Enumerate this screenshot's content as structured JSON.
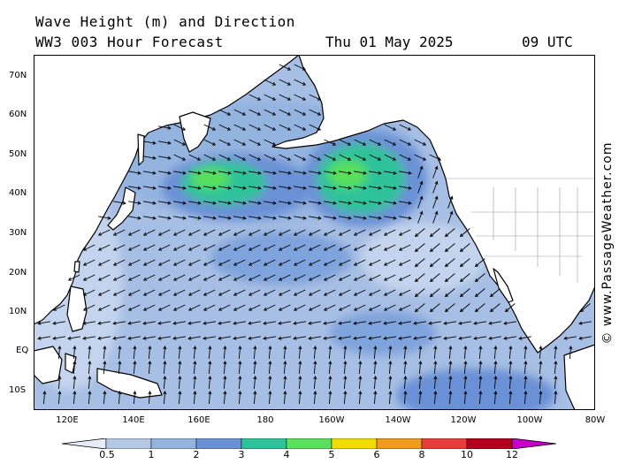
{
  "title": {
    "line1": "Wave Height (m) and Direction",
    "line2": "WW3 003 Hour Forecast",
    "date": "Thu 01 May 2025",
    "time": "09 UTC"
  },
  "credit": "© www.PassageWeather.com",
  "lat_labels": [
    "70N",
    "60N",
    "50N",
    "40N",
    "30N",
    "20N",
    "10N",
    "EQ",
    "10S"
  ],
  "lon_labels": [
    "120E",
    "140E",
    "160E",
    "180",
    "160W",
    "140W",
    "120W",
    "100W",
    "80W"
  ],
  "legend": {
    "labels": [
      "0.5",
      "1",
      "2",
      "3",
      "4",
      "5",
      "6",
      "8",
      "10",
      "12"
    ],
    "colors": [
      "#e6edf8",
      "#b4c8e6",
      "#94b4e0",
      "#6a91d6",
      "#2ec29a",
      "#5ae05a",
      "#f0dc00",
      "#f09a1e",
      "#e83c3c",
      "#b4001e",
      "#c800c8"
    ]
  },
  "map": {
    "land_color": "#ffffff",
    "ocean_base_color": "#a7bfe4",
    "arrow_color": "#000000"
  }
}
